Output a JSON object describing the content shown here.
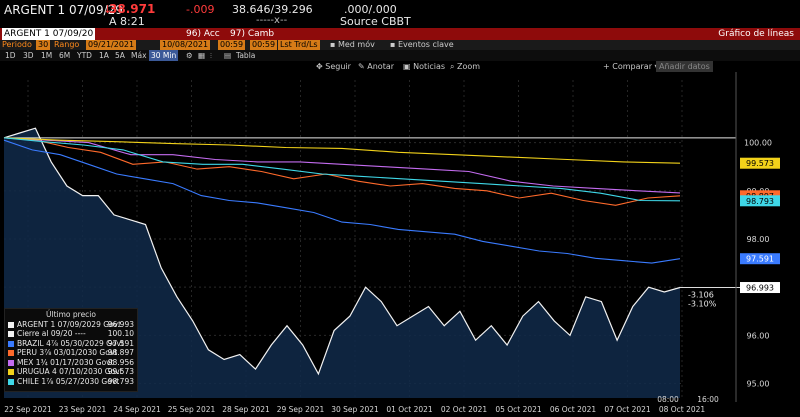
{
  "header": {
    "security": "ARGENT 1 07/09/29",
    "price": "38.971",
    "change": "-.009",
    "bid_ask": "38.646/39.296",
    "volume": ".000/.000",
    "time_prefix": "A",
    "time": "8:21",
    "filler": "-----x--",
    "source_label": "Source",
    "source": "CBBT"
  },
  "command_bar": {
    "ticker": "ARGENT 1 07/09/20",
    "actions_menu": "96) Acc",
    "edit_menu": "97) Camb",
    "title": "Gráfico de líneas"
  },
  "settings": {
    "period_label": "Periodo",
    "period_value": "30",
    "range_label": "Rango",
    "range_start": "09/21/2021",
    "range_end": "10/08/2021",
    "time_start": "00:59",
    "time_end": "00:59",
    "mode": "Lst Trd/Ls",
    "mov_avg": "Med móv",
    "key_events": "Eventos clave"
  },
  "range_buttons": [
    "1D",
    "3D",
    "1M",
    "6M",
    "YTD",
    "1A",
    "5A",
    "Máx",
    "30 Min"
  ],
  "range_selected": "30 Min",
  "table_label": "Tabla",
  "toolbar": {
    "follow": "Seguir",
    "annotate": "Anotar",
    "news": "Noticias",
    "zoom": "Zoom",
    "compare": "Comparar",
    "add_data": "Añadir datos"
  },
  "colors": {
    "argent": "#f2f2f2",
    "brazil": "#3a7bff",
    "peru": "#ff6a2b",
    "mex": "#c46cf0",
    "uruguay": "#f2d21a",
    "chile": "#3fd8e8",
    "area_fill": "#102a4a"
  },
  "legend": {
    "title": "Último precio",
    "items": [
      {
        "name": "ARGENT 1 07/09/2029 Govt",
        "value": "96.993",
        "color": "#f2f2f2"
      },
      {
        "name": "Cierre al 09/20 ----",
        "value": "100.10",
        "color": "#f2f2f2"
      },
      {
        "name": "BRAZIL 4⅞ 05/30/2029 Govt",
        "value": "97.591",
        "color": "#3a7bff"
      },
      {
        "name": "PERU 3⅞ 03/01/2030 Govt",
        "value": "98.897",
        "color": "#ff6a2b"
      },
      {
        "name": "MEX 1¾ 01/17/2030 Govt",
        "value": "98.956",
        "color": "#c46cf0"
      },
      {
        "name": "URUGUA 4 07/10/2030 Govt",
        "value": "99.573",
        "color": "#f2d21a"
      },
      {
        "name": "CHILE 1⅞ 05/27/2030 Govt",
        "value": "98.793",
        "color": "#3fd8e8"
      }
    ]
  },
  "chart_data": {
    "type": "line",
    "ylim": [
      94.7,
      101.3
    ],
    "yticks": [
      "100.00",
      "99.00",
      "98.00",
      "97.00",
      "96.00",
      "95.00"
    ],
    "ytick_values": [
      100,
      99,
      98,
      97,
      96,
      95
    ],
    "xticks": [
      "22 Sep 2021",
      "23 Sep 2021",
      "24 Sep 2021",
      "25 Sep 2021",
      "28 Sep 2021",
      "29 Sep 2021",
      "30 Sep 2021",
      "01 Oct 2021",
      "02 Oct 2021",
      "05 Oct 2021",
      "06 Oct 2021",
      "07 Oct 2021",
      "08 Oct 2021"
    ],
    "xticks_top": [
      "08:00",
      "16:00"
    ],
    "reference_line": 100.1,
    "last_value_labels": [
      "99.573",
      "98.897",
      "98.793",
      "97.591",
      "96.993"
    ],
    "annotation": [
      "-3.106",
      "-3.10%"
    ],
    "series": [
      {
        "name": "ARGENT 1 07/09/2029 Govt",
        "key": "argent",
        "values": [
          100.1,
          100.2,
          100.3,
          99.6,
          99.1,
          98.9,
          98.9,
          98.5,
          98.4,
          98.3,
          97.4,
          96.8,
          96.3,
          95.7,
          95.5,
          95.6,
          95.3,
          95.8,
          96.2,
          95.8,
          95.2,
          96.1,
          96.4,
          97.0,
          96.7,
          96.2,
          96.4,
          96.6,
          96.2,
          96.5,
          95.9,
          96.2,
          95.8,
          96.4,
          96.7,
          96.3,
          96.0,
          96.8,
          96.7,
          95.9,
          96.6,
          97.0,
          96.9,
          96.993
        ]
      },
      {
        "name": "Cierre al 09/20",
        "key": "close_ref",
        "values": [
          100.1,
          100.1
        ]
      },
      {
        "name": "BRAZIL 4⅞ 05/30/2029 Govt",
        "key": "brazil",
        "values": [
          100.05,
          99.85,
          99.75,
          99.55,
          99.35,
          99.25,
          99.15,
          98.9,
          98.8,
          98.75,
          98.65,
          98.55,
          98.35,
          98.3,
          98.2,
          98.15,
          98.1,
          97.95,
          97.85,
          97.75,
          97.7,
          97.6,
          97.55,
          97.5,
          97.591
        ]
      },
      {
        "name": "PERU 3⅞ 03/01/2030 Govt",
        "key": "peru",
        "values": [
          100.1,
          100.05,
          99.9,
          99.8,
          99.55,
          99.6,
          99.45,
          99.5,
          99.4,
          99.25,
          99.35,
          99.2,
          99.1,
          99.15,
          99.05,
          99.0,
          98.85,
          98.95,
          98.8,
          98.7,
          98.85,
          98.897
        ]
      },
      {
        "name": "MEX 1¾ 01/17/2030 Govt",
        "key": "mex",
        "values": [
          100.1,
          100.05,
          100.0,
          99.75,
          99.75,
          99.65,
          99.6,
          99.6,
          99.55,
          99.5,
          99.45,
          99.4,
          99.2,
          99.1,
          99.05,
          99.0,
          98.956
        ]
      },
      {
        "name": "URUGUA 4 07/10/2030 Govt",
        "key": "uruguay",
        "values": [
          100.1,
          100.05,
          100.02,
          99.98,
          99.95,
          99.9,
          99.88,
          99.8,
          99.75,
          99.7,
          99.65,
          99.6,
          99.573
        ]
      },
      {
        "name": "CHILE 1⅞ 05/27/2030 Govt",
        "key": "chile",
        "values": [
          100.1,
          100.02,
          99.95,
          99.85,
          99.6,
          99.55,
          99.55,
          99.45,
          99.35,
          99.3,
          99.25,
          99.2,
          99.15,
          99.1,
          99.05,
          98.95,
          98.8,
          98.793
        ]
      }
    ]
  }
}
